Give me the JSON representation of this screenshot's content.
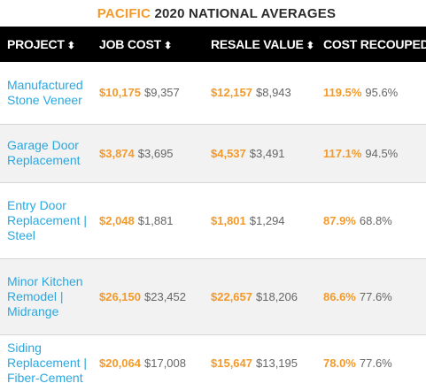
{
  "title": {
    "accent": "PACIFIC",
    "text": "2020 NATIONAL AVERAGES"
  },
  "headers": [
    {
      "label": "PROJECT",
      "sort": "⬍"
    },
    {
      "label": "JOB COST",
      "sort": "⬍"
    },
    {
      "label": "RESALE VALUE",
      "sort": "⬍"
    },
    {
      "label": "COST RECOUPED",
      "sort": "⬍"
    }
  ],
  "rows": [
    {
      "project": "Manufactured Stone Veneer",
      "job_cost": "$10,175",
      "job_cost_nat": "$9,357",
      "resale": "$12,157",
      "resale_nat": "$8,943",
      "recouped": "119.5%",
      "recouped_nat": "95.6%"
    },
    {
      "project": "Garage Door Replacement",
      "job_cost": "$3,874",
      "job_cost_nat": "$3,695",
      "resale": "$4,537",
      "resale_nat": "$3,491",
      "recouped": "117.1%",
      "recouped_nat": "94.5%"
    },
    {
      "project": "Entry Door Replacement | Steel",
      "job_cost": "$2,048",
      "job_cost_nat": "$1,881",
      "resale": "$1,801",
      "resale_nat": "$1,294",
      "recouped": "87.9%",
      "recouped_nat": "68.8%"
    },
    {
      "project": "Minor Kitchen Remodel | Midrange",
      "job_cost": "$26,150",
      "job_cost_nat": "$23,452",
      "resale": "$22,657",
      "resale_nat": "$18,206",
      "recouped": "86.6%",
      "recouped_nat": "77.6%"
    },
    {
      "project": "Siding Replacement | Fiber-Cement",
      "job_cost": "$20,064",
      "job_cost_nat": "$17,008",
      "resale": "$15,647",
      "resale_nat": "$13,195",
      "recouped": "78.0%",
      "recouped_nat": "77.6%"
    }
  ],
  "colors": {
    "accent": "#f39a2b",
    "link": "#2aa7df",
    "header_bg": "#000000",
    "alt_row": "#f2f2f2"
  }
}
